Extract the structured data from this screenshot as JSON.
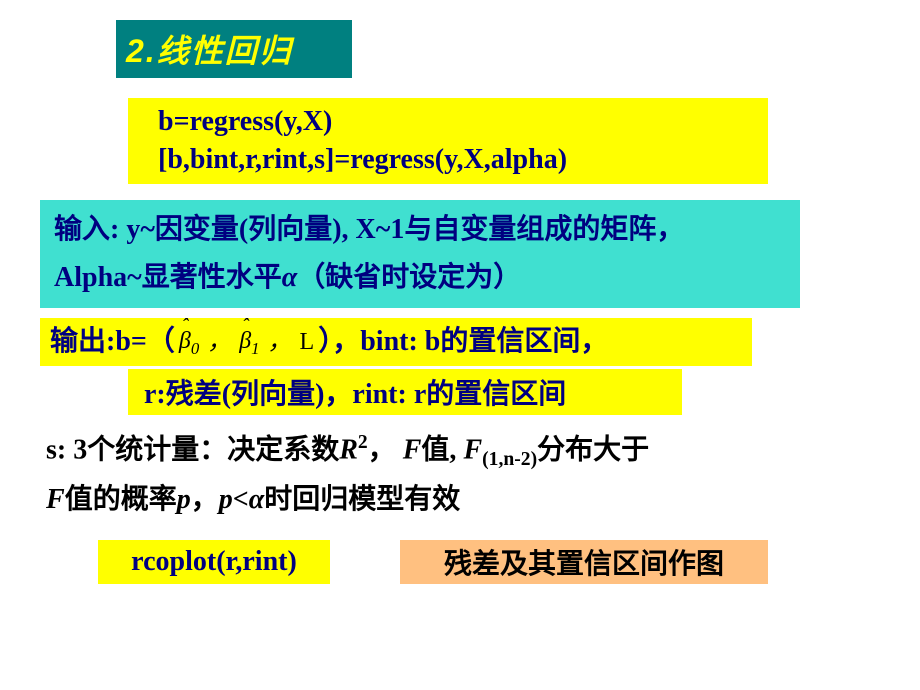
{
  "title": "2.线性回归",
  "formula_line1": "b=regress(y,X)",
  "formula_line2": "[b,bint,r,rint,s]=regress(y,X,alpha)",
  "input_line1_pre": "输入: y~因变量(列向量), X~1与自变量组成的矩阵，",
  "input_line2_pre": "Alpha~显著性水平",
  "input_alpha": "α",
  "input_line2_post": "（缺省时设定为）",
  "output1_pre": "输出:b=（",
  "output1_beta0": "β",
  "output1_sub0": "0",
  "output1_comma": "，",
  "output1_beta1": "β",
  "output1_sub1": "1",
  "output1_comma2": "，",
  "output1_L": "L",
  "output1_post": "），bint: b的置信区间，",
  "output2": "r:残差(列向量)，rint: r的置信区间",
  "s_pre": "s: 3个统计量：决定系数",
  "s_R": "R",
  "s_R2": "2",
  "s_mid1": "， ",
  "s_F": "F",
  "s_mid2": "值, ",
  "s_F2": "F",
  "s_Fsub": "(1,n-2)",
  "s_mid3": "分布大于",
  "s_F3": "F",
  "s_mid4": "值的概率",
  "s_p": "p",
  "s_mid5": "，",
  "s_p2": "p",
  "s_lt": "<",
  "s_alpha": "α",
  "s_mid6": "时回归模型有效",
  "rcoplot": "rcoplot(r,rint)",
  "residplot": "残差及其置信区间作图",
  "colors": {
    "title_bg": "#008080",
    "title_fg": "#ffff00",
    "formula_bg": "#ffff00",
    "formula_fg": "#000080",
    "input_bg": "#40e0d0",
    "input_fg": "#000080",
    "output_bg": "#ffff00",
    "output_fg": "#000080",
    "s_fg": "#000000",
    "rcoplot_bg": "#ffff00",
    "rcoplot_fg": "#000080",
    "resid_bg": "#ffc080",
    "resid_fg": "#000000"
  }
}
